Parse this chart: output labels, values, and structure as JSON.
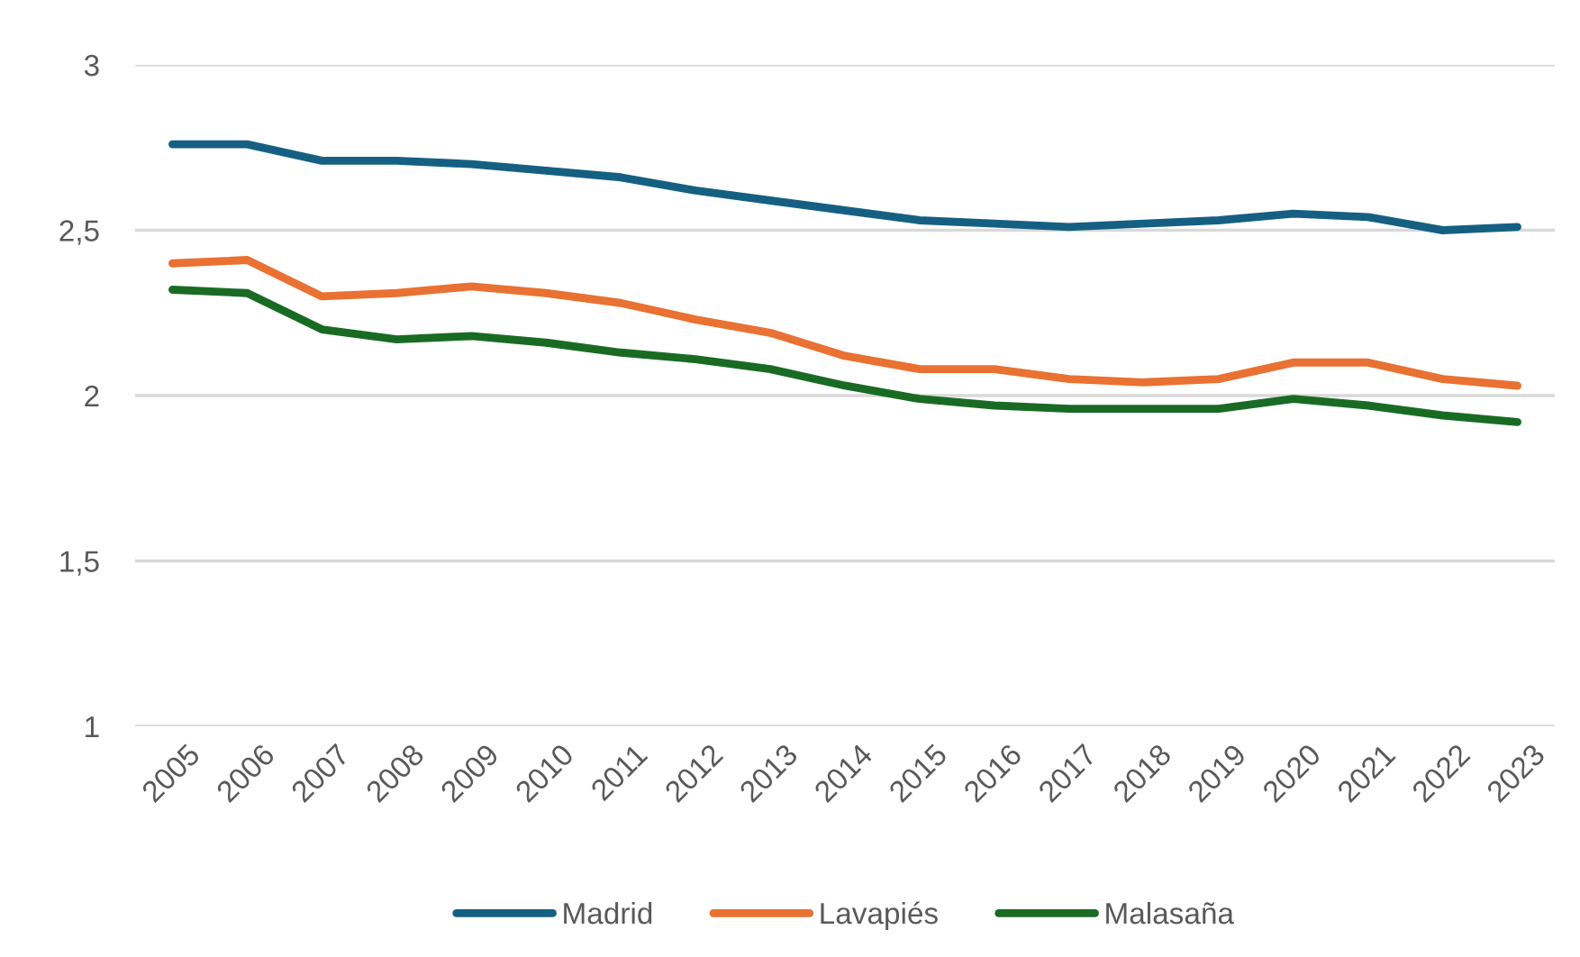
{
  "chart_data": {
    "type": "line",
    "categories": [
      "2005",
      "2006",
      "2007",
      "2008",
      "2009",
      "2010",
      "2011",
      "2012",
      "2013",
      "2014",
      "2015",
      "2016",
      "2017",
      "2018",
      "2019",
      "2020",
      "2021",
      "2022",
      "2023"
    ],
    "series": [
      {
        "name": "Madrid",
        "color": "#156082",
        "values": [
          2.76,
          2.76,
          2.71,
          2.71,
          2.7,
          2.68,
          2.66,
          2.62,
          2.59,
          2.56,
          2.53,
          2.52,
          2.51,
          2.52,
          2.53,
          2.55,
          2.54,
          2.5,
          2.51
        ]
      },
      {
        "name": "Lavapiés",
        "color": "#e97132",
        "values": [
          2.4,
          2.41,
          2.3,
          2.31,
          2.33,
          2.31,
          2.28,
          2.23,
          2.19,
          2.12,
          2.08,
          2.08,
          2.05,
          2.04,
          2.05,
          2.1,
          2.1,
          2.05,
          2.03
        ]
      },
      {
        "name": "Malasaña",
        "color": "#196b24",
        "values": [
          2.32,
          2.31,
          2.2,
          2.17,
          2.18,
          2.16,
          2.13,
          2.11,
          2.08,
          2.03,
          1.99,
          1.97,
          1.96,
          1.96,
          1.96,
          1.99,
          1.97,
          1.94,
          1.92
        ]
      }
    ],
    "ylim": [
      1,
      3
    ],
    "yticks": [
      1,
      {
        "value": 1.5,
        "label": "1,5"
      },
      2,
      {
        "value": 2.5,
        "label": "2,5"
      },
      3
    ],
    "grid": "y",
    "legend": "bottom",
    "marker": "none",
    "line_style": "solid"
  }
}
